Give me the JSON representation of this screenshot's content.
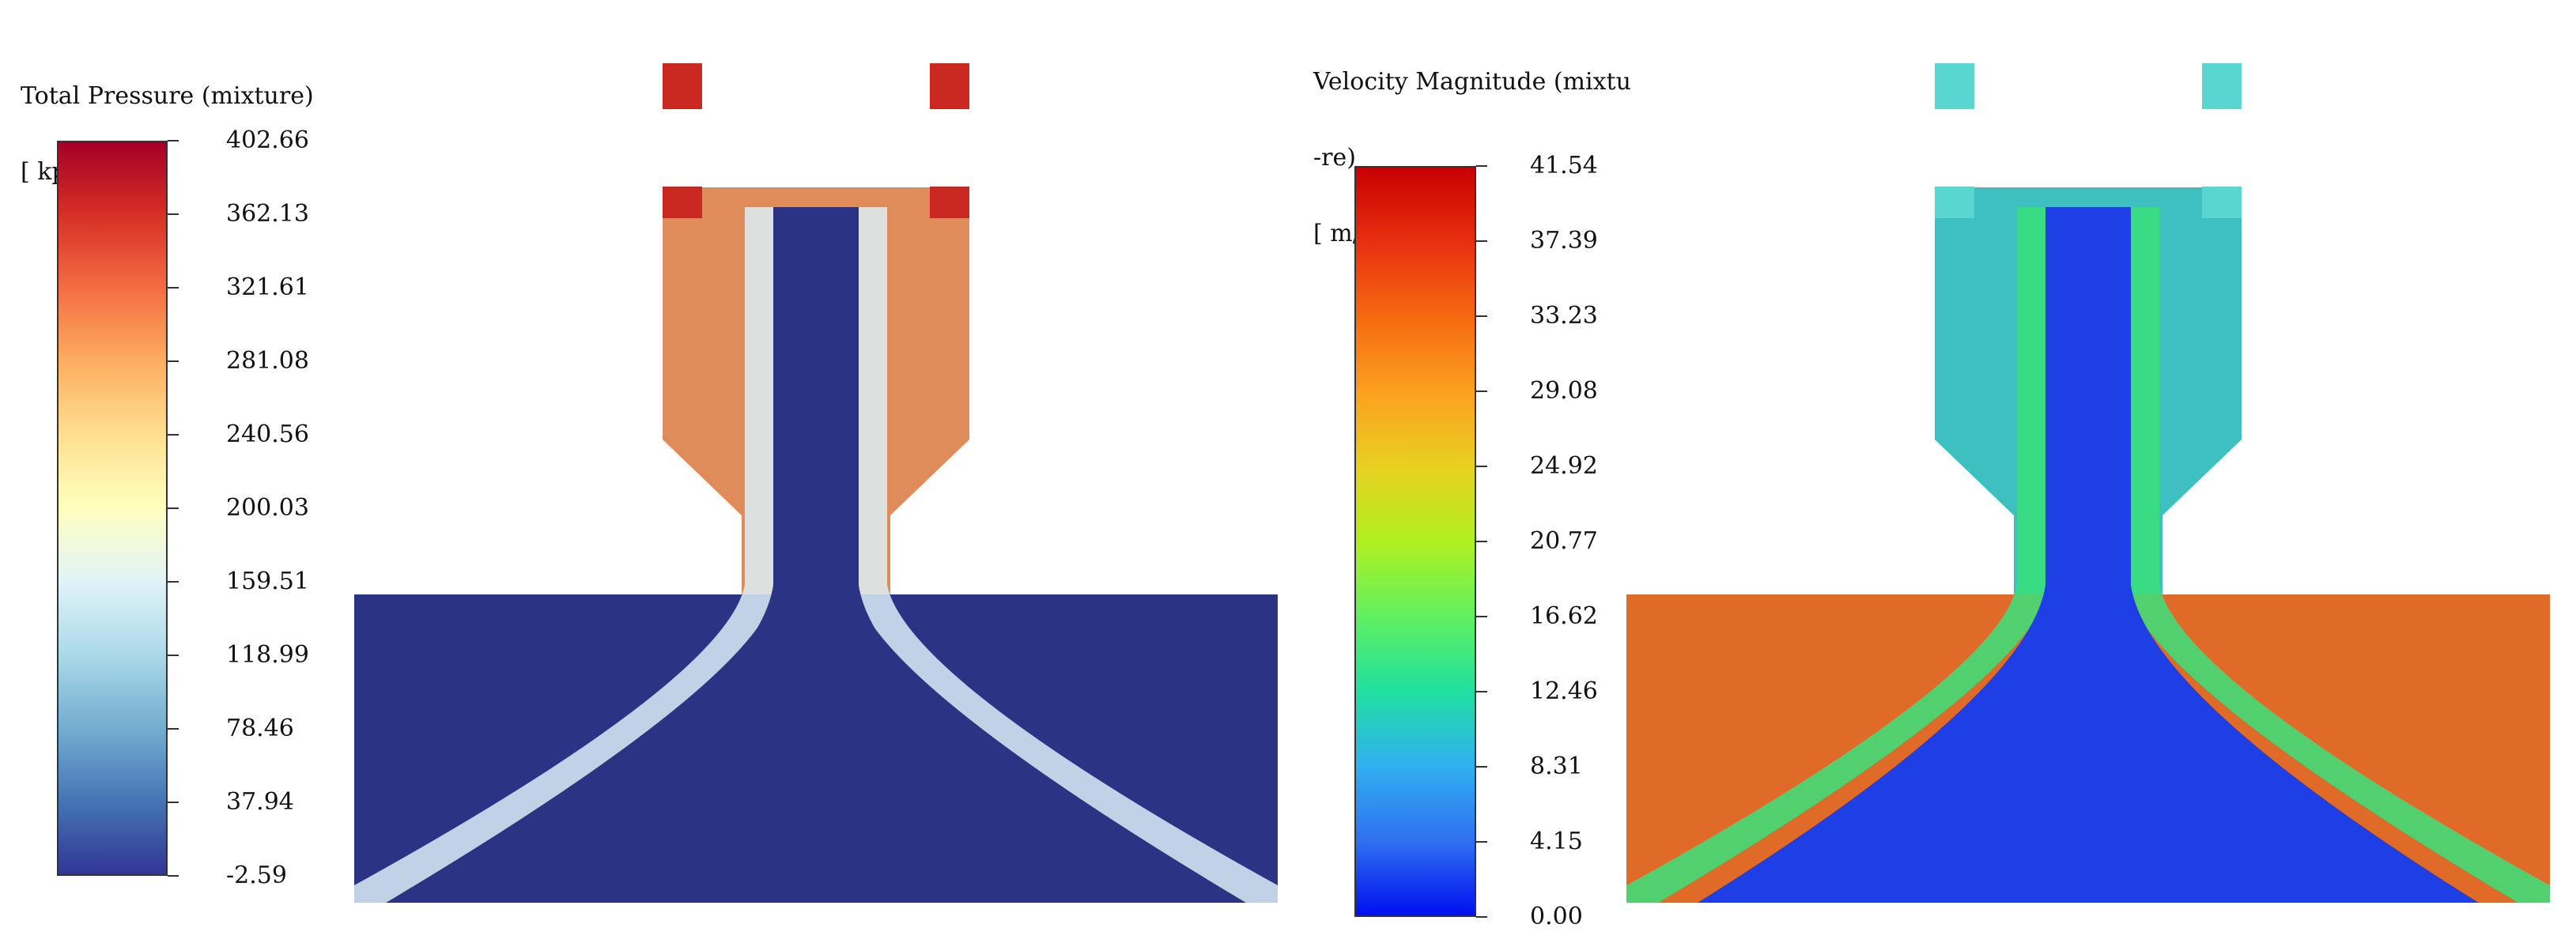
{
  "panels": [
    {
      "legend": {
        "title_lines": [
          "Total Pressure (mixture)",
          "[ kpa ]"
        ],
        "ticks": [
          "402.66",
          "362.13",
          "321.61",
          "281.08",
          "240.56",
          "200.03",
          "159.51",
          "118.99",
          "78.46",
          "37.94",
          "-2.59"
        ],
        "colormap": [
          "#a50026",
          "#d73027",
          "#f46d43",
          "#fdae61",
          "#fee090",
          "#ffffbf",
          "#e0f3f8",
          "#abd9e9",
          "#74add1",
          "#4575b4",
          "#313695"
        ]
      },
      "field": {
        "background": "#2b3484",
        "jet_color": "#2b3484",
        "shear_color": "#dceef7",
        "head_color": "#e08c5a",
        "port_color": "#c8281f"
      }
    },
    {
      "legend": {
        "title_lines": [
          "Velocity Magnitude (mixtu",
          "-re)",
          "[ m/s ]"
        ],
        "ticks": [
          "41.54",
          "37.39",
          "33.23",
          "29.08",
          "24.92",
          "20.77",
          "16.62",
          "12.46",
          "8.31",
          "4.15",
          "0.00"
        ],
        "colormap": [
          "#c80000",
          "#e83010",
          "#f56a10",
          "#fca020",
          "#e8d020",
          "#b0f020",
          "#60f060",
          "#20e0a0",
          "#30b0f0",
          "#3070f0",
          "#0010f0"
        ]
      },
      "field": {
        "background": "#e06a28",
        "jet_color": "#1f3fe6",
        "shear_color": "#38e07a",
        "head_color": "#3fc0c0",
        "port_color": "#5ad6d0"
      }
    }
  ]
}
